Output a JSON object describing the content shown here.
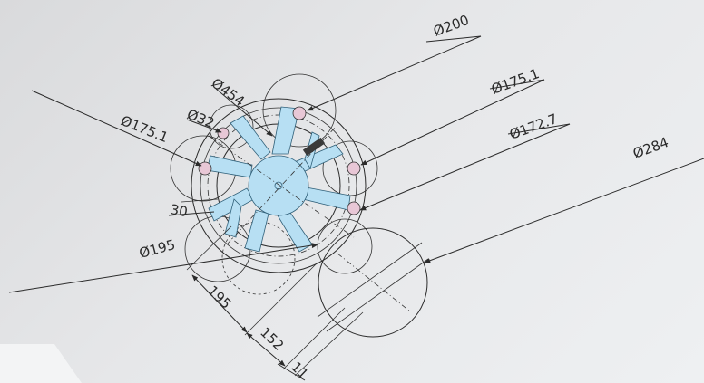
{
  "dimensions": {
    "d200": "Ø200",
    "d175_right": "Ø175.1",
    "d172_7": "Ø172.7",
    "d284": "Ø284",
    "d454": "Ø454",
    "d32": "Ø32",
    "d175_left": "Ø175.1",
    "d30": "30",
    "d195_dia": "Ø195",
    "d195": "195",
    "d152": "152",
    "d11": "11"
  },
  "colors": {
    "hub_fill": "#b7dff3",
    "hole_fill": "#e8c7d6",
    "line": "#2b2b2b"
  }
}
